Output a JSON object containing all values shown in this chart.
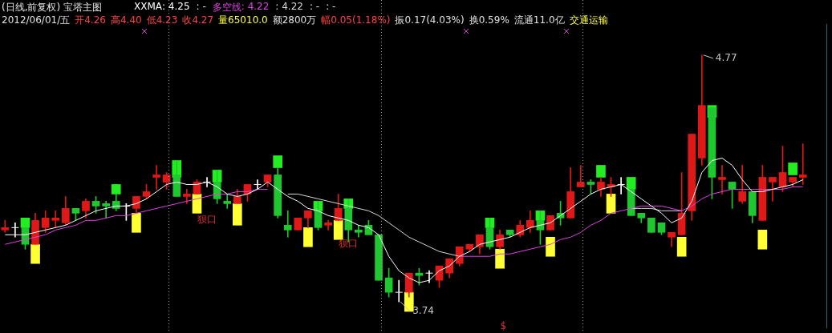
{
  "chart_data": {
    "type": "candlestick",
    "title": "(日线,前复权) 宝塔主图",
    "categories": [
      null,
      null,
      null,
      null,
      null,
      null,
      null,
      null,
      null,
      null,
      null,
      null,
      null,
      null,
      null,
      null,
      null,
      null,
      null,
      null,
      null,
      null,
      null,
      null,
      null,
      null,
      null,
      null,
      null,
      null,
      null,
      null,
      null,
      null,
      null,
      null,
      null,
      null,
      null,
      null,
      null,
      null,
      null,
      null,
      null,
      null,
      null,
      null,
      null,
      null,
      null,
      null,
      null,
      null,
      null,
      null,
      null,
      null,
      null,
      null,
      null,
      null,
      null,
      null,
      null,
      null,
      null,
      null,
      null,
      null,
      null,
      null,
      null,
      null,
      null,
      null,
      null,
      null,
      null,
      null
    ],
    "ohlc": [
      [
        4.04,
        4.08,
        4.03,
        4.05
      ],
      [
        4.05,
        4.07,
        4.01,
        4.05
      ],
      [
        4.05,
        4.05,
        3.96,
        3.98
      ],
      [
        3.98,
        4.11,
        3.98,
        4.08
      ],
      [
        4.05,
        4.12,
        4.03,
        4.09
      ],
      [
        4.08,
        4.12,
        4.05,
        4.09
      ],
      [
        4.07,
        4.18,
        4.06,
        4.13
      ],
      [
        4.13,
        4.13,
        4.08,
        4.11
      ],
      [
        4.12,
        4.17,
        4.09,
        4.16
      ],
      [
        4.16,
        4.18,
        4.11,
        4.14
      ],
      [
        4.15,
        4.16,
        4.09,
        4.14
      ],
      [
        4.16,
        4.19,
        4.12,
        4.13
      ],
      [
        4.14,
        4.15,
        4.08,
        4.14
      ],
      [
        4.13,
        4.18,
        4.11,
        4.18
      ],
      [
        4.18,
        4.23,
        4.17,
        4.2
      ],
      [
        4.26,
        4.31,
        4.21,
        4.27
      ],
      [
        4.24,
        4.28,
        4.21,
        4.27
      ],
      [
        4.27,
        4.33,
        4.18,
        4.18
      ],
      [
        4.18,
        4.21,
        4.15,
        4.19
      ],
      [
        4.19,
        4.25,
        4.19,
        4.24
      ],
      [
        4.24,
        4.26,
        4.22,
        4.24
      ],
      [
        4.24,
        4.29,
        4.15,
        4.17
      ],
      [
        4.16,
        4.19,
        4.13,
        4.15
      ],
      [
        4.15,
        4.21,
        4.15,
        4.18
      ],
      [
        4.19,
        4.23,
        4.16,
        4.23
      ],
      [
        4.23,
        4.25,
        4.21,
        4.23
      ],
      [
        4.24,
        4.27,
        4.22,
        4.27
      ],
      [
        4.27,
        4.3,
        4.09,
        4.1
      ],
      [
        4.06,
        4.12,
        4.01,
        4.04
      ],
      [
        4.04,
        4.09,
        4.04,
        4.09
      ],
      [
        4.09,
        4.12,
        4.05,
        4.12
      ],
      [
        4.12,
        4.16,
        4.04,
        4.05
      ],
      [
        4.06,
        4.08,
        4.04,
        4.07
      ],
      [
        4.08,
        4.19,
        4.08,
        4.13
      ],
      [
        4.13,
        4.17,
        3.99,
        4.04
      ],
      [
        4.04,
        4.06,
        4.01,
        4.03
      ],
      [
        4.06,
        4.08,
        4.02,
        4.02
      ],
      [
        4.02,
        4.02,
        3.83,
        3.83
      ],
      [
        3.84,
        3.88,
        3.76,
        3.78
      ],
      [
        3.78,
        3.83,
        3.74,
        3.78
      ],
      [
        3.78,
        3.86,
        3.76,
        3.86
      ],
      [
        3.86,
        3.88,
        3.81,
        3.85
      ],
      [
        3.86,
        3.87,
        3.82,
        3.86
      ],
      [
        3.83,
        3.89,
        3.8,
        3.89
      ],
      [
        3.86,
        3.92,
        3.84,
        3.92
      ],
      [
        3.9,
        3.97,
        3.89,
        3.97
      ],
      [
        3.96,
        3.98,
        3.95,
        3.98
      ],
      [
        3.97,
        4.02,
        3.94,
        4.02
      ],
      [
        4.05,
        4.09,
        3.96,
        3.97
      ],
      [
        3.97,
        4.04,
        3.96,
        4.02
      ],
      [
        4.04,
        4.04,
        4.01,
        4.02
      ],
      [
        4.02,
        4.08,
        4.01,
        4.06
      ],
      [
        4.05,
        4.12,
        4.03,
        4.08
      ],
      [
        4.08,
        4.12,
        3.98,
        4.04
      ],
      [
        4.04,
        4.1,
        4.04,
        4.1
      ],
      [
        4.11,
        4.16,
        4.06,
        4.09
      ],
      [
        4.09,
        4.3,
        4.09,
        4.2
      ],
      [
        4.22,
        4.31,
        4.22,
        4.24
      ],
      [
        4.24,
        4.25,
        4.19,
        4.23
      ],
      [
        4.21,
        4.26,
        4.18,
        4.24
      ],
      [
        4.22,
        4.26,
        4.18,
        4.23
      ],
      [
        4.23,
        4.26,
        4.19,
        4.23
      ],
      [
        4.21,
        4.21,
        4.1,
        4.1
      ],
      [
        4.11,
        4.11,
        4.07,
        4.09
      ],
      [
        4.09,
        4.09,
        4.03,
        4.03
      ],
      [
        4.07,
        4.07,
        4.02,
        4.03
      ],
      [
        4.01,
        4.03,
        3.97,
        4.03
      ],
      [
        4.02,
        4.28,
        4.02,
        4.11
      ],
      [
        4.12,
        4.44,
        4.08,
        4.44
      ],
      [
        4.34,
        4.77,
        4.31,
        4.56
      ],
      [
        4.55,
        4.55,
        4.17,
        4.26
      ],
      [
        4.25,
        4.31,
        4.19,
        4.26
      ],
      [
        4.24,
        4.24,
        4.13,
        4.21
      ],
      [
        4.16,
        4.31,
        4.15,
        4.2
      ],
      [
        4.2,
        4.2,
        4.07,
        4.1
      ],
      [
        4.08,
        4.31,
        4.08,
        4.26
      ],
      [
        4.24,
        4.26,
        4.16,
        4.26
      ],
      [
        4.22,
        4.39,
        4.2,
        4.28
      ],
      [
        4.24,
        4.26,
        4.22,
        4.26
      ],
      [
        4.26,
        4.4,
        4.23,
        4.27
      ]
    ],
    "series": [
      {
        "type": "line",
        "name": "XXMA",
        "color": "#ffffff",
        "values": [
          4.02,
          4.02,
          4.02,
          4.03,
          4.04,
          4.05,
          4.06,
          4.08,
          4.1,
          4.12,
          4.13,
          4.14,
          4.14,
          4.15,
          4.17,
          4.2,
          4.23,
          4.24,
          4.23,
          4.23,
          4.24,
          4.22,
          4.19,
          4.18,
          4.19,
          4.21,
          4.24,
          4.21,
          4.18,
          4.16,
          4.13,
          4.12,
          4.1,
          4.09,
          4.08,
          4.06,
          4.05,
          4.02,
          3.93,
          3.87,
          3.84,
          3.82,
          3.83,
          3.87,
          3.89,
          3.93,
          3.95,
          3.98,
          3.99,
          4.0,
          4.01,
          4.03,
          4.05,
          4.06,
          4.07,
          4.1,
          4.13,
          4.16,
          4.19,
          4.21,
          4.22,
          4.23,
          4.2,
          4.17,
          4.14,
          4.11,
          4.07,
          4.09,
          4.16,
          4.28,
          4.33,
          4.34,
          4.31,
          4.25,
          4.2,
          4.2,
          4.21,
          4.22,
          4.23,
          4.25
        ]
      },
      {
        "type": "line",
        "name": "多空线",
        "color": "#e040e0",
        "values": [
          3.98,
          3.99,
          4.0,
          4.01,
          4.02,
          4.04,
          4.05,
          4.06,
          4.08,
          4.08,
          4.09,
          4.1,
          4.1,
          4.11,
          4.12,
          4.13,
          4.14,
          4.15,
          4.16,
          4.17,
          4.18,
          4.19,
          4.19,
          4.2,
          4.2,
          4.21,
          4.21,
          null,
          null,
          null,
          null,
          null,
          null,
          null,
          null,
          null,
          null,
          null,
          null,
          null,
          null,
          null,
          null,
          null,
          null,
          3.93,
          3.93,
          3.93,
          3.93,
          3.94,
          3.94,
          3.95,
          3.96,
          3.97,
          3.98,
          4.0,
          4.01,
          4.03,
          4.06,
          4.08,
          4.11,
          4.12,
          4.13,
          4.14,
          4.14,
          4.14,
          4.13,
          4.12,
          4.14,
          4.17,
          4.19,
          4.2,
          4.21,
          4.21,
          4.21,
          4.21,
          4.21,
          4.21,
          4.22,
          4.22
        ]
      },
      {
        "type": "line",
        "color": "#d8d8d8",
        "values": [
          null,
          null,
          null,
          null,
          null,
          null,
          null,
          null,
          null,
          null,
          null,
          null,
          null,
          null,
          null,
          null,
          null,
          null,
          null,
          null,
          null,
          null,
          null,
          null,
          null,
          null,
          null,
          null,
          4.19,
          4.19,
          4.18,
          4.17,
          4.16,
          4.15,
          4.14,
          4.13,
          4.12,
          4.1,
          4.07,
          4.04,
          4.01,
          3.99,
          3.97,
          3.95,
          3.94,
          3.93,
          null,
          null,
          null,
          null,
          null,
          null,
          null,
          null,
          null,
          null,
          null,
          null,
          null,
          null,
          null,
          null,
          4.13,
          4.13,
          4.13,
          4.12,
          4.12,
          4.12,
          null,
          null,
          null,
          null,
          null,
          null,
          null,
          null,
          null,
          null,
          null,
          null
        ]
      },
      {
        "type": "bar",
        "color": "#22ee22",
        "base": [
          null,
          null,
          4.05,
          null,
          null,
          null,
          null,
          null,
          null,
          null,
          null,
          4.19,
          null,
          null,
          null,
          null,
          null,
          4.26,
          null,
          null,
          null,
          4.24,
          null,
          null,
          null,
          null,
          null,
          4.3,
          null,
          null,
          null,
          4.12,
          null,
          null,
          4.13,
          null,
          null,
          null,
          null,
          null,
          null,
          null,
          null,
          null,
          null,
          null,
          null,
          null,
          4.05,
          null,
          null,
          null,
          null,
          4.08,
          null,
          null,
          null,
          null,
          null,
          4.26,
          null,
          null,
          4.21,
          null,
          null,
          null,
          null,
          null,
          null,
          null,
          4.51,
          null,
          null,
          null,
          null,
          null,
          null,
          null,
          4.27,
          null
        ],
        "values": [
          null,
          null,
          0.04,
          null,
          null,
          null,
          null,
          null,
          null,
          null,
          null,
          0.04,
          null,
          null,
          null,
          null,
          null,
          0.07,
          null,
          null,
          null,
          0.05,
          null,
          null,
          null,
          null,
          null,
          0.05,
          null,
          null,
          null,
          0.04,
          null,
          null,
          0.04,
          null,
          null,
          null,
          null,
          null,
          null,
          null,
          null,
          null,
          null,
          null,
          null,
          null,
          0.04,
          null,
          null,
          null,
          null,
          0.04,
          null,
          null,
          null,
          null,
          null,
          0.05,
          null,
          null,
          0.05,
          null,
          null,
          null,
          null,
          null,
          null,
          null,
          0.05,
          null,
          null,
          null,
          null,
          null,
          null,
          null,
          0.05,
          null
        ]
      },
      {
        "type": "bar",
        "color": "#ffff33",
        "base": [
          null,
          null,
          null,
          3.9,
          null,
          null,
          null,
          null,
          null,
          null,
          null,
          null,
          null,
          4.03,
          null,
          null,
          null,
          null,
          null,
          4.11,
          null,
          null,
          null,
          4.06,
          null,
          null,
          null,
          null,
          null,
          null,
          3.97,
          null,
          null,
          4.0,
          null,
          null,
          null,
          null,
          null,
          null,
          3.7,
          null,
          null,
          null,
          null,
          null,
          null,
          null,
          null,
          3.88,
          null,
          null,
          null,
          null,
          3.93,
          null,
          null,
          null,
          null,
          null,
          4.11,
          null,
          null,
          null,
          null,
          null,
          null,
          3.93,
          null,
          null,
          null,
          null,
          null,
          null,
          null,
          3.96,
          null,
          null,
          null,
          null
        ],
        "values": [
          null,
          null,
          null,
          0.08,
          null,
          null,
          null,
          null,
          null,
          null,
          null,
          null,
          null,
          0.08,
          null,
          null,
          null,
          null,
          null,
          0.08,
          null,
          null,
          null,
          0.09,
          null,
          null,
          null,
          null,
          null,
          null,
          0.08,
          null,
          null,
          0.08,
          null,
          null,
          null,
          null,
          null,
          null,
          0.08,
          null,
          null,
          null,
          null,
          null,
          null,
          null,
          null,
          0.08,
          null,
          null,
          null,
          null,
          0.08,
          null,
          null,
          null,
          null,
          null,
          0.08,
          null,
          null,
          null,
          null,
          null,
          null,
          0.08,
          null,
          null,
          null,
          null,
          null,
          null,
          null,
          0.08,
          null,
          null,
          null,
          null
        ]
      }
    ],
    "annotations": [
      ": 4.25",
      ": -",
      ": 4.22",
      ": 4.22",
      ": -",
      ": -",
      "2012/06/01/五",
      "开4.26",
      "高4.40",
      "低4.23",
      "收4.27",
      "量65010.0",
      "额2800万",
      "幅0.05(1.18%)",
      "振0.17(4.03%)",
      "换0.59%",
      "流通11.0亿",
      "交通运输",
      "4.77",
      "3.74",
      "狈口",
      "狈口",
      "$"
    ],
    "ylim": [
      3.61,
      5.0
    ]
  }
}
